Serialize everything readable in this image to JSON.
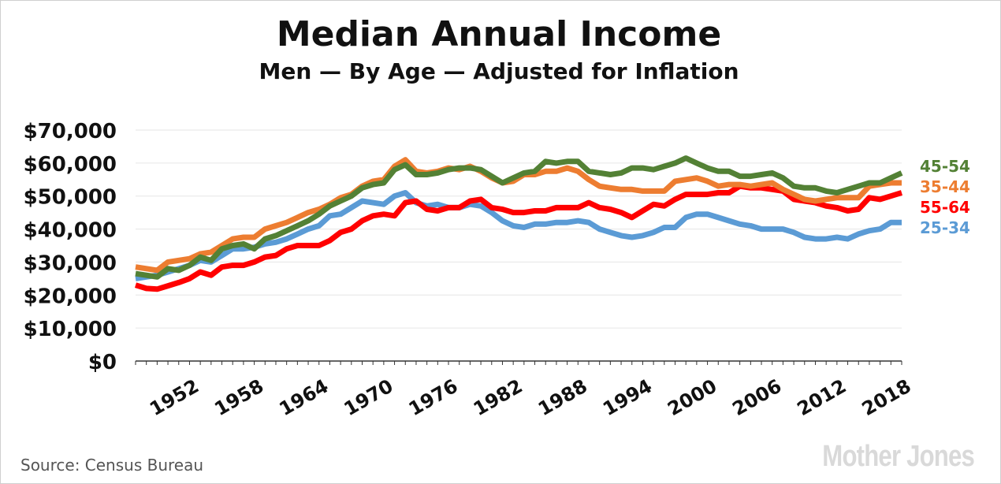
{
  "chart_data": {
    "type": "line",
    "title": "Median Annual Income",
    "subtitle": "Men — By Age — Adjusted for Inflation",
    "xlabel": "",
    "ylabel": "",
    "xlim": [
      1947,
      2018
    ],
    "ylim": [
      0,
      70000
    ],
    "y_ticks": [
      0,
      10000,
      20000,
      30000,
      40000,
      50000,
      60000,
      70000
    ],
    "y_tick_labels": [
      "$0",
      "$10,000",
      "$20,000",
      "$30,000",
      "$40,000",
      "$50,000",
      "$60,000",
      "$70,000"
    ],
    "x_tick_labels": [
      "1952",
      "1958",
      "1964",
      "1970",
      "1976",
      "1982",
      "1988",
      "1994",
      "2000",
      "2006",
      "2012",
      "2018"
    ],
    "x_tick_values": [
      1952,
      1958,
      1964,
      1970,
      1976,
      1982,
      1988,
      1994,
      2000,
      2006,
      2012,
      2018
    ],
    "grid": true,
    "legend_placement": "right, at line ends",
    "series": [
      {
        "name": "45-54",
        "color": "#538135",
        "years": [
          1947,
          1948,
          1949,
          1950,
          1951,
          1952,
          1953,
          1954,
          1955,
          1956,
          1957,
          1958,
          1959,
          1960,
          1961,
          1962,
          1963,
          1964,
          1965,
          1966,
          1967,
          1968,
          1969,
          1970,
          1971,
          1972,
          1973,
          1974,
          1975,
          1976,
          1977,
          1978,
          1979,
          1980,
          1981,
          1982,
          1983,
          1984,
          1985,
          1986,
          1987,
          1988,
          1989,
          1990,
          1991,
          1992,
          1993,
          1994,
          1995,
          1996,
          1997,
          1998,
          1999,
          2000,
          2001,
          2002,
          2003,
          2004,
          2005,
          2006,
          2007,
          2008,
          2009,
          2010,
          2011,
          2012,
          2013,
          2014,
          2015,
          2016,
          2017,
          2018
        ],
        "values": [
          26500,
          26000,
          25500,
          28000,
          27500,
          29000,
          31500,
          30500,
          34000,
          35000,
          35500,
          34000,
          37000,
          38000,
          39500,
          41000,
          42500,
          44500,
          47000,
          48500,
          50000,
          52500,
          53500,
          54000,
          58000,
          59500,
          56500,
          56500,
          57000,
          58000,
          58500,
          58500,
          58000,
          56000,
          54000,
          55500,
          57000,
          57500,
          60500,
          60000,
          60500,
          60500,
          57500,
          57000,
          56500,
          57000,
          58500,
          58500,
          58000,
          59000,
          60000,
          61500,
          60000,
          58500,
          57500,
          57500,
          56000,
          56000,
          56500,
          57000,
          55500,
          53000,
          52500,
          52500,
          51500,
          51000,
          52000,
          53000,
          54000,
          54000,
          55500,
          57000
        ]
      },
      {
        "name": "35-44",
        "color": "#ed7d31",
        "years": [
          1947,
          1948,
          1949,
          1950,
          1951,
          1952,
          1953,
          1954,
          1955,
          1956,
          1957,
          1958,
          1959,
          1960,
          1961,
          1962,
          1963,
          1964,
          1965,
          1966,
          1967,
          1968,
          1969,
          1970,
          1971,
          1972,
          1973,
          1974,
          1975,
          1976,
          1977,
          1978,
          1979,
          1980,
          1981,
          1982,
          1983,
          1984,
          1985,
          1986,
          1987,
          1988,
          1989,
          1990,
          1991,
          1992,
          1993,
          1994,
          1995,
          1996,
          1997,
          1998,
          1999,
          2000,
          2001,
          2002,
          2003,
          2004,
          2005,
          2006,
          2007,
          2008,
          2009,
          2010,
          2011,
          2012,
          2013,
          2014,
          2015,
          2016,
          2017,
          2018
        ],
        "values": [
          28500,
          28000,
          27500,
          30000,
          30500,
          31000,
          32500,
          33000,
          35000,
          37000,
          37500,
          37500,
          40000,
          41000,
          42000,
          43500,
          45000,
          46000,
          47500,
          49500,
          50500,
          53000,
          54500,
          55000,
          59000,
          61000,
          57500,
          57000,
          57500,
          58500,
          58000,
          59000,
          57500,
          55500,
          54000,
          54500,
          56500,
          56500,
          57500,
          57500,
          58500,
          57500,
          55000,
          53000,
          52500,
          52000,
          52000,
          51500,
          51500,
          51500,
          54500,
          55000,
          55500,
          54500,
          53000,
          53500,
          53500,
          53000,
          53500,
          54000,
          52000,
          50500,
          49000,
          48500,
          49000,
          49500,
          49500,
          49500,
          53000,
          53500,
          54000,
          54000
        ]
      },
      {
        "name": "55-64",
        "color": "#ff0000",
        "years": [
          1947,
          1948,
          1949,
          1950,
          1951,
          1952,
          1953,
          1954,
          1955,
          1956,
          1957,
          1958,
          1959,
          1960,
          1961,
          1962,
          1963,
          1964,
          1965,
          1966,
          1967,
          1968,
          1969,
          1970,
          1971,
          1972,
          1973,
          1974,
          1975,
          1976,
          1977,
          1978,
          1979,
          1980,
          1981,
          1982,
          1983,
          1984,
          1985,
          1986,
          1987,
          1988,
          1989,
          1990,
          1991,
          1992,
          1993,
          1994,
          1995,
          1996,
          1997,
          1998,
          1999,
          2000,
          2001,
          2002,
          2003,
          2004,
          2005,
          2006,
          2007,
          2008,
          2009,
          2010,
          2011,
          2012,
          2013,
          2014,
          2015,
          2016,
          2017,
          2018
        ],
        "values": [
          23000,
          22000,
          21800,
          22800,
          23800,
          25000,
          27000,
          26000,
          28500,
          29000,
          29000,
          30000,
          31500,
          32000,
          34000,
          35000,
          35000,
          35000,
          36500,
          39000,
          40000,
          42500,
          44000,
          44500,
          44000,
          48000,
          48500,
          46000,
          45500,
          46500,
          46500,
          48500,
          49000,
          46500,
          46000,
          45000,
          45000,
          45500,
          45500,
          46500,
          46500,
          46500,
          48000,
          46500,
          46000,
          45000,
          43500,
          45500,
          47500,
          47000,
          49000,
          50500,
          50500,
          50500,
          51000,
          51000,
          53000,
          52500,
          52500,
          52000,
          51500,
          49000,
          48500,
          48000,
          47000,
          46500,
          45500,
          46000,
          49500,
          49000,
          50000,
          51000
        ]
      },
      {
        "name": "25-34",
        "color": "#5b9bd5",
        "years": [
          1947,
          1948,
          1949,
          1950,
          1951,
          1952,
          1953,
          1954,
          1955,
          1956,
          1957,
          1958,
          1959,
          1960,
          1961,
          1962,
          1963,
          1964,
          1965,
          1966,
          1967,
          1968,
          1969,
          1970,
          1971,
          1972,
          1973,
          1974,
          1975,
          1976,
          1977,
          1978,
          1979,
          1980,
          1981,
          1982,
          1983,
          1984,
          1985,
          1986,
          1987,
          1988,
          1989,
          1990,
          1991,
          1992,
          1993,
          1994,
          1995,
          1996,
          1997,
          1998,
          1999,
          2000,
          2001,
          2002,
          2003,
          2004,
          2005,
          2006,
          2007,
          2008,
          2009,
          2010,
          2011,
          2012,
          2013,
          2014,
          2015,
          2016,
          2017,
          2018
        ],
        "values": [
          25000,
          25500,
          26000,
          27000,
          28000,
          29000,
          30500,
          30000,
          32000,
          34000,
          34000,
          34500,
          35500,
          36000,
          37000,
          38500,
          40000,
          41000,
          44000,
          44500,
          46500,
          48500,
          48000,
          47500,
          50000,
          51000,
          48000,
          47000,
          47500,
          46500,
          46500,
          47500,
          47000,
          45000,
          42500,
          41000,
          40500,
          41500,
          41500,
          42000,
          42000,
          42500,
          42000,
          40000,
          39000,
          38000,
          37500,
          38000,
          39000,
          40500,
          40500,
          43500,
          44500,
          44500,
          43500,
          42500,
          41500,
          41000,
          40000,
          40000,
          40000,
          39000,
          37500,
          37000,
          37000,
          37500,
          37000,
          38500,
          39500,
          40000,
          42000,
          42000
        ]
      }
    ]
  },
  "source": "Source: Census Bureau",
  "brand": "Mother Jones"
}
